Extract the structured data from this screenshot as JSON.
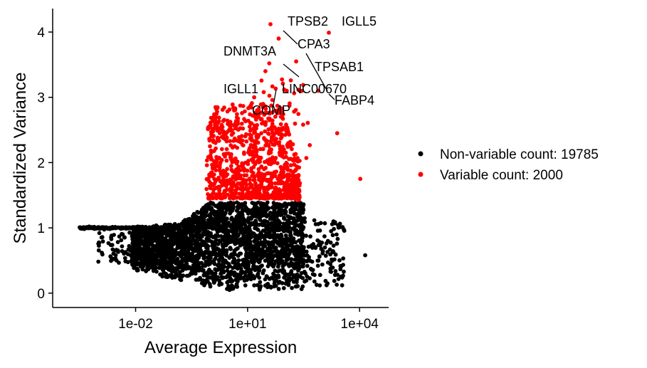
{
  "chart_data": {
    "type": "scatter",
    "xlabel": "Average Expression",
    "ylabel": "Standardized Variance",
    "x_scale": "log10",
    "xlim": [
      6e-05,
      60000
    ],
    "ylim": [
      -0.22,
      4.36
    ],
    "x_ticks": [
      {
        "value": 0.01,
        "label": "1e-02"
      },
      {
        "value": 10,
        "label": "1e+01"
      },
      {
        "value": 10000,
        "label": "1e+04"
      }
    ],
    "y_ticks": [
      {
        "value": 0,
        "label": "0"
      },
      {
        "value": 1,
        "label": "1"
      },
      {
        "value": 2,
        "label": "2"
      },
      {
        "value": 3,
        "label": "3"
      },
      {
        "value": 4,
        "label": "4"
      }
    ],
    "grid": false,
    "legend_position": "right",
    "series": [
      {
        "name": "Non-variable count: 19785",
        "color": "#000000"
      },
      {
        "name": "Variable count: 2000",
        "color": "#ff0000"
      }
    ],
    "labeled_genes": [
      {
        "gene": "TPSB2",
        "x": 41,
        "y": 4.12
      },
      {
        "gene": "IGLL5",
        "x": 1500,
        "y": 3.99
      },
      {
        "gene": "CPA3",
        "x": 68,
        "y": 3.9
      },
      {
        "gene": "DNMT3A",
        "x": 38,
        "y": 3.52
      },
      {
        "gene": "TPSAB1",
        "x": 200,
        "y": 3.55
      },
      {
        "gene": "IGLL1",
        "x": 15,
        "y": 3.0
      },
      {
        "gene": "LINC00670",
        "x": 30,
        "y": 3.4
      },
      {
        "gene": "FABP4",
        "x": 780,
        "y": 3.1
      },
      {
        "gene": "COMP",
        "x": 27,
        "y": 3.08
      }
    ]
  }
}
